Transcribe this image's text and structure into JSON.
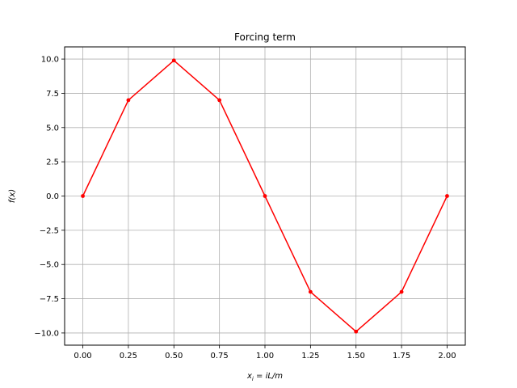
{
  "chart_data": {
    "type": "line",
    "title": "Forcing term",
    "xlabel": "x_i = iL/m",
    "ylabel": "f(x)",
    "x": [
      0.0,
      0.25,
      0.5,
      0.75,
      1.0,
      1.25,
      1.5,
      1.75,
      2.0
    ],
    "series": [
      {
        "values": [
          0.0,
          7.0,
          9.9,
          7.0,
          0.0,
          -7.0,
          -9.9,
          -7.0,
          0.0
        ],
        "color": "#ff0000",
        "marker": "dot"
      }
    ],
    "xlim": [
      -0.1,
      2.1
    ],
    "ylim": [
      -10.89,
      10.89
    ],
    "xticks": [
      "0.00",
      "0.25",
      "0.50",
      "0.75",
      "1.00",
      "1.25",
      "1.50",
      "1.75",
      "2.00"
    ],
    "yticks": [
      "10.0",
      "7.5",
      "5.0",
      "2.5",
      "0.0",
      "−2.5",
      "−5.0",
      "−7.5",
      "−10.0"
    ],
    "grid": true,
    "colors": {
      "grid": "#b0b0b0",
      "line": "#ff0000",
      "axes": "#000000"
    }
  }
}
